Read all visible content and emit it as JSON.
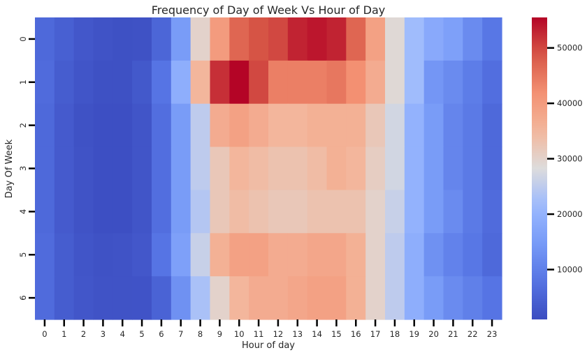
{
  "chart_data": {
    "type": "heatmap",
    "title": "Frequency of Day of Week Vs Hour of Day",
    "xlabel": "Hour of day",
    "ylabel": "Day Of Week",
    "x": [
      "0",
      "1",
      "2",
      "3",
      "4",
      "5",
      "6",
      "7",
      "8",
      "9",
      "10",
      "11",
      "12",
      "13",
      "14",
      "15",
      "16",
      "17",
      "18",
      "19",
      "20",
      "21",
      "22",
      "23"
    ],
    "y": [
      "0",
      "1",
      "2",
      "3",
      "4",
      "5",
      "6"
    ],
    "values": [
      [
        6000,
        4500,
        3000,
        2200,
        1800,
        2000,
        5500,
        15000,
        30000,
        40000,
        47000,
        49000,
        50000,
        53000,
        54000,
        53000,
        47000,
        39000,
        29000,
        22000,
        18000,
        16000,
        12000,
        8500
      ],
      [
        6500,
        4000,
        2500,
        1800,
        1800,
        3200,
        8000,
        19000,
        35000,
        52000,
        55500,
        50000,
        44000,
        44000,
        44000,
        45000,
        42000,
        37000,
        29000,
        22000,
        14000,
        12000,
        9500,
        7000
      ],
      [
        6000,
        3500,
        2000,
        1500,
        1500,
        2500,
        7000,
        15000,
        25000,
        37000,
        39000,
        37000,
        35000,
        35000,
        36000,
        36000,
        36000,
        32000,
        27000,
        20000,
        15000,
        11000,
        9000,
        6000
      ],
      [
        6000,
        3500,
        2200,
        1600,
        1600,
        2600,
        7000,
        15000,
        25000,
        32000,
        35000,
        34000,
        33000,
        33000,
        34000,
        36000,
        35000,
        31000,
        27000,
        20000,
        15000,
        11000,
        9000,
        6000
      ],
      [
        6000,
        3500,
        2200,
        1600,
        1600,
        2600,
        7000,
        15000,
        24000,
        32000,
        34000,
        33000,
        32000,
        32000,
        33000,
        33000,
        33000,
        30000,
        26000,
        20000,
        15000,
        12000,
        9000,
        6500
      ],
      [
        6500,
        4000,
        2500,
        2000,
        2200,
        3000,
        8000,
        16000,
        26000,
        36000,
        39000,
        39000,
        37000,
        37000,
        38000,
        38000,
        36000,
        30000,
        25000,
        19000,
        13000,
        10500,
        8500,
        6000
      ],
      [
        6500,
        4000,
        2800,
        2200,
        2200,
        2300,
        5000,
        13000,
        23000,
        30000,
        35000,
        37000,
        37000,
        38000,
        39000,
        39000,
        36000,
        30000,
        25000,
        19000,
        15000,
        12000,
        10000,
        8000
      ]
    ],
    "colorbar": {
      "ticks": [
        10000,
        20000,
        30000,
        40000,
        50000
      ],
      "vmin": 1000,
      "vmax": 55500,
      "colormap": "coolwarm"
    }
  }
}
